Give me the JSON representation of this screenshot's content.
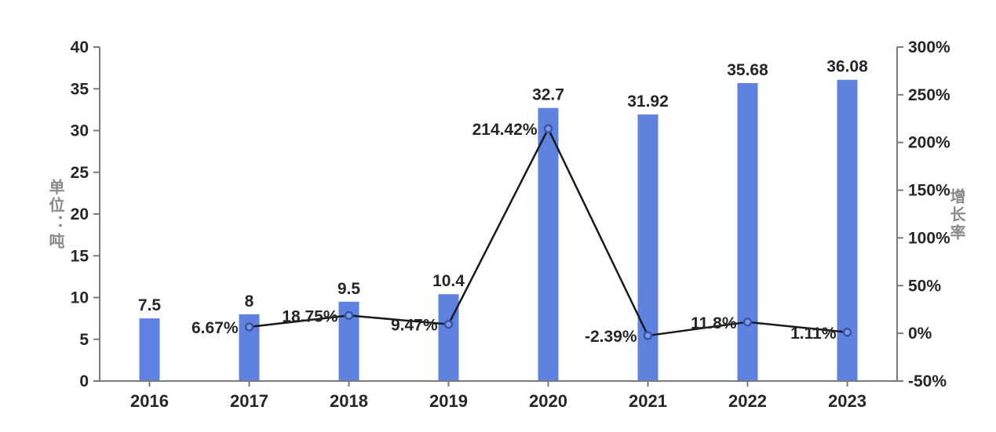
{
  "chart_data": {
    "type": "bar+line combo",
    "title": "",
    "categories": [
      "2016",
      "2017",
      "2018",
      "2019",
      "2020",
      "2021",
      "2022",
      "2023"
    ],
    "series": [
      {
        "name": "tonnage-bars",
        "type": "bar",
        "axis": "left",
        "values": [
          7.5,
          8,
          9.5,
          10.4,
          32.7,
          31.92,
          35.68,
          36.08
        ],
        "labels": [
          "7.5",
          "8",
          "9.5",
          "10.4",
          "32.7",
          "31.92",
          "35.68",
          "36.08"
        ],
        "color": "#5f81e0"
      },
      {
        "name": "growth-rate-line",
        "type": "line",
        "axis": "right",
        "start_index": 1,
        "values": [
          6.67,
          18.75,
          9.47,
          214.42,
          -2.39,
          11.8,
          1.11
        ],
        "labels": [
          "6.67%",
          "18.75%",
          "9.47%",
          "214.42%",
          "-2.39%",
          "11.8%",
          "1.11%"
        ],
        "color": "#1a1a1a",
        "marker_stroke": "#3a55a8",
        "marker_fill": "#7d9ae8"
      }
    ],
    "left_axis": {
      "title": "单位：吨",
      "min": 0,
      "max": 40,
      "step": 5,
      "ticks": [
        "0",
        "5",
        "10",
        "15",
        "20",
        "25",
        "30",
        "35",
        "40"
      ]
    },
    "right_axis": {
      "title": "增长率",
      "min": -50,
      "max": 300,
      "step": 50,
      "ticks": [
        "-50%",
        "0%",
        "50%",
        "100%",
        "150%",
        "200%",
        "250%",
        "300%"
      ]
    },
    "grid": false,
    "legend_position": "none",
    "background_color": "#ffffff",
    "axis_line_color": "#7a7a7a",
    "label_text_color": "#262626"
  }
}
